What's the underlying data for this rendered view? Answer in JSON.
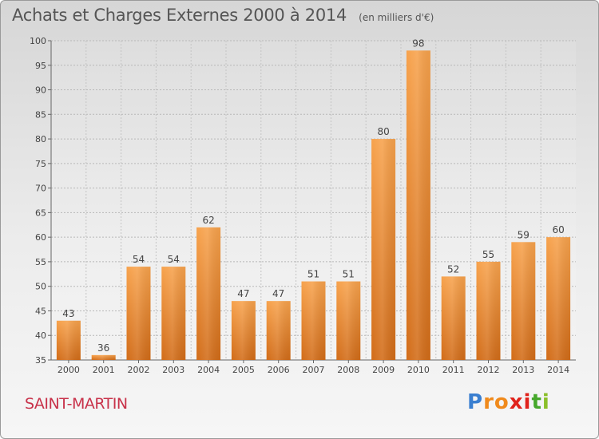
{
  "chart_data": {
    "type": "bar",
    "title": "Achats et Charges Externes 2000 à 2014",
    "subtitle": "(en milliers d'€)",
    "categories": [
      "2000",
      "2001",
      "2002",
      "2003",
      "2004",
      "2005",
      "2006",
      "2007",
      "2008",
      "2009",
      "2010",
      "2011",
      "2012",
      "2013",
      "2014"
    ],
    "values": [
      43,
      36,
      54,
      54,
      62,
      47,
      47,
      51,
      51,
      80,
      98,
      52,
      55,
      59,
      60
    ],
    "ylim": [
      35,
      100
    ],
    "yticks": [
      35,
      40,
      45,
      50,
      55,
      60,
      65,
      70,
      75,
      80,
      85,
      90,
      95,
      100
    ],
    "grid": true,
    "bar_color": "#f2913e",
    "xlabel": "",
    "ylabel": ""
  },
  "footer": {
    "commune": "SAINT-MARTIN",
    "brand_letters": [
      "P",
      "r",
      "o",
      "x",
      "i",
      "t",
      "i"
    ],
    "brand_colors": [
      "#3a7fd0",
      "#f08a1c",
      "#f08a1c",
      "#e0231c",
      "#e0231c",
      "#46a82c",
      "#8bbf2a"
    ]
  }
}
